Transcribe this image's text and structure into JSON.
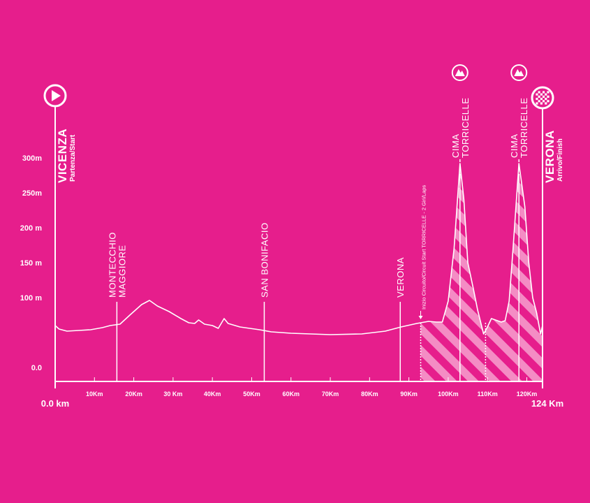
{
  "chart_data": {
    "type": "area",
    "title": "",
    "xlabel": "",
    "ylabel": "",
    "xlim": [
      0,
      124
    ],
    "ylim": [
      0,
      300
    ],
    "x_start_label": "0.0 km",
    "x_end_label": "124 Km",
    "y_ticks": [
      {
        "value": 0,
        "label": "0.0"
      },
      {
        "value": 100,
        "label": "100 m"
      },
      {
        "value": 150,
        "label": "150 m"
      },
      {
        "value": 200,
        "label": "200 m"
      },
      {
        "value": 250,
        "label": "250m"
      },
      {
        "value": 300,
        "label": "300m"
      }
    ],
    "x_ticks": [
      {
        "value": 10,
        "label": "10Km"
      },
      {
        "value": 20,
        "label": "20Km"
      },
      {
        "value": 30,
        "label": "30 Km"
      },
      {
        "value": 40,
        "label": "40Km"
      },
      {
        "value": 50,
        "label": "50Km"
      },
      {
        "value": 60,
        "label": "60Km"
      },
      {
        "value": 70,
        "label": "70Km"
      },
      {
        "value": 80,
        "label": "80Km"
      },
      {
        "value": 90,
        "label": "90Km"
      },
      {
        "value": 100,
        "label": "100Km"
      },
      {
        "value": 110,
        "label": "110Km"
      },
      {
        "value": 120,
        "label": "120Km"
      }
    ],
    "profile": {
      "x": [
        0,
        1,
        3,
        6,
        9,
        12,
        14,
        16.5,
        19,
        22,
        24,
        26,
        29,
        32,
        34,
        35.5,
        36.5,
        38,
        40,
        41.5,
        43,
        44,
        47,
        52,
        55,
        60,
        70,
        78,
        84,
        88,
        92,
        95,
        97,
        98.5,
        100,
        101.5,
        103,
        104,
        105,
        106.5,
        107.5,
        109,
        110,
        111,
        112.5,
        113.5,
        114.5,
        115.5,
        116.5,
        118,
        119.5,
        120.5,
        121.5,
        122.5,
        123.5,
        124
      ],
      "y": [
        60,
        55,
        52,
        53,
        54,
        57,
        60,
        62,
        75,
        90,
        96,
        88,
        80,
        70,
        64,
        63,
        68,
        62,
        60,
        56,
        70,
        63,
        58,
        54,
        51,
        49,
        47,
        48,
        52,
        58,
        63,
        66,
        65,
        65,
        95,
        170,
        292,
        240,
        150,
        110,
        82,
        48,
        58,
        70,
        67,
        65,
        67,
        95,
        170,
        292,
        230,
        150,
        100,
        78,
        48,
        60
      ]
    },
    "hatched_climbs": [
      {
        "from": 93,
        "to": 109.5
      },
      {
        "from": 109.5,
        "to": 124
      }
    ],
    "circuit_markers": [
      {
        "value": 93,
        "label": "Inizio Circuito/Circuit Start TORRICELLE - 2 Giri/Laps"
      },
      {
        "value": 109.5,
        "label": ""
      }
    ],
    "places": [
      {
        "x": 0,
        "name": "VICENZA",
        "sub": "Partenza/Start",
        "style": "endpoint",
        "icon": "play-icon"
      },
      {
        "x": 15.7,
        "name": "MONTECCHIO",
        "name2": "MAGGIORE",
        "style": "waypoint"
      },
      {
        "x": 53.2,
        "name": "SAN BONIFACIO",
        "style": "waypoint"
      },
      {
        "x": 87.8,
        "name": "VERONA",
        "style": "waypoint"
      },
      {
        "x": 103,
        "name": "CIMA",
        "name2": "TORRICELLE",
        "style": "climb",
        "icon": "mountain-icon"
      },
      {
        "x": 118,
        "name": "CIMA",
        "name2": "TORRICELLE",
        "style": "climb",
        "icon": "mountain-icon"
      },
      {
        "x": 124,
        "name": "VERONA",
        "sub": "Arrivo/Finish",
        "style": "endpoint",
        "icon": "checkered-flag-icon"
      }
    ],
    "colors": {
      "background": "#E61E8C",
      "foreground": "#FFFFFF",
      "hatch_light": "#F48CC4"
    }
  }
}
